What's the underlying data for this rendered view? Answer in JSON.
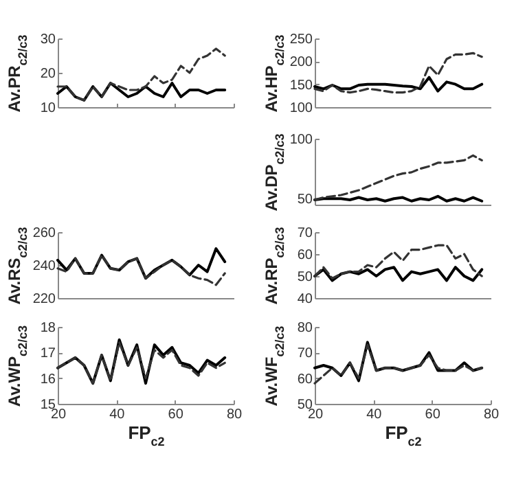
{
  "chart_data": [
    {
      "type": "line",
      "ylabel": "Av.PR$_{c2/c3}$",
      "x": [
        20,
        23,
        26,
        29,
        32,
        35,
        38,
        41,
        44,
        47,
        50,
        53,
        56,
        59,
        62,
        65,
        68,
        71,
        74,
        77
      ],
      "xlim": [
        20,
        80
      ],
      "xticks": [
        {
          "value": 20,
          "label": null
        },
        {
          "value": 40,
          "label": null
        },
        {
          "value": 60,
          "label": null
        },
        {
          "value": 80,
          "label": null
        }
      ],
      "ylim": [
        10,
        30
      ],
      "yticks": [
        10,
        20,
        30
      ],
      "tick_labels": "y",
      "grid": false,
      "series": [
        {
          "color": "#000000",
          "line_style": "solid",
          "values": [
            14,
            16,
            13,
            12,
            16,
            13,
            17,
            15,
            13,
            14,
            16,
            14,
            13,
            17,
            13,
            15,
            15,
            14,
            15,
            15
          ]
        },
        {
          "color": "#333333",
          "line_style": "dashed",
          "values": [
            16,
            16,
            13,
            12,
            16,
            13,
            17,
            16,
            15,
            15,
            16,
            19,
            17,
            18,
            22,
            20,
            24,
            25,
            27,
            25
          ]
        }
      ]
    },
    {
      "type": "line",
      "ylabel": "Av.HP$_{c2/c3}$",
      "x": [
        20,
        23,
        26,
        29,
        32,
        35,
        38,
        41,
        44,
        47,
        50,
        53,
        56,
        59,
        62,
        65,
        68,
        71,
        74,
        77
      ],
      "xlim": [
        20,
        80
      ],
      "ylim": [
        100,
        250
      ],
      "yticks": [
        100,
        150,
        200,
        250
      ],
      "tick_labels": "y",
      "grid": false,
      "series": [
        {
          "color": "#000000",
          "line_style": "solid",
          "values": [
            145,
            140,
            148,
            140,
            140,
            148,
            150,
            150,
            150,
            148,
            146,
            145,
            140,
            165,
            135,
            155,
            150,
            140,
            140,
            150
          ]
        },
        {
          "color": "#333333",
          "line_style": "dashed",
          "values": [
            140,
            135,
            148,
            135,
            132,
            135,
            140,
            138,
            135,
            132,
            132,
            135,
            145,
            190,
            170,
            205,
            215,
            215,
            218,
            210
          ]
        }
      ]
    },
    {
      "type": "line",
      "ylabel": "Av.DP$_{c2/c3}$",
      "x": [
        20,
        23,
        26,
        29,
        32,
        35,
        38,
        41,
        44,
        47,
        50,
        53,
        56,
        59,
        62,
        65,
        68,
        71,
        74,
        77
      ],
      "xlim": [
        20,
        80
      ],
      "ylim": [
        45,
        100
      ],
      "yticks": [
        50,
        100
      ],
      "tick_labels": "y",
      "grid": false,
      "series": [
        {
          "color": "#000000",
          "line_style": "solid",
          "values": [
            49,
            50,
            50,
            50,
            49,
            51,
            49,
            50,
            48,
            50,
            51,
            48,
            50,
            49,
            52,
            48,
            50,
            48,
            51,
            48
          ]
        },
        {
          "color": "#333333",
          "line_style": "dashed",
          "values": [
            49,
            51,
            52,
            53,
            55,
            57,
            60,
            63,
            66,
            69,
            71,
            72,
            75,
            77,
            80,
            80,
            81,
            82,
            86,
            82
          ]
        }
      ]
    },
    {
      "type": "line",
      "ylabel": "Av.RS$_{c2/c3}$",
      "x": [
        20,
        23,
        26,
        29,
        32,
        35,
        38,
        41,
        44,
        47,
        50,
        53,
        56,
        59,
        62,
        65,
        68,
        71,
        74,
        77
      ],
      "xlim": [
        20,
        80
      ],
      "ylim": [
        220,
        260
      ],
      "yticks": [
        220,
        240,
        260
      ],
      "tick_labels": "y",
      "grid": false,
      "series": [
        {
          "color": "#000000",
          "line_style": "solid",
          "values": [
            243,
            237,
            244,
            235,
            235,
            246,
            238,
            237,
            242,
            244,
            232,
            237,
            240,
            243,
            239,
            234,
            240,
            236,
            250,
            242
          ]
        },
        {
          "color": "#333333",
          "line_style": "dashed",
          "values": [
            238,
            236,
            244,
            235,
            235,
            246,
            238,
            237,
            242,
            244,
            232,
            236,
            240,
            243,
            239,
            234,
            232,
            231,
            228,
            235
          ]
        }
      ]
    },
    {
      "type": "line",
      "ylabel": "Av.RP$_{c2/c3}$",
      "x": [
        20,
        23,
        26,
        29,
        32,
        35,
        38,
        41,
        44,
        47,
        50,
        53,
        56,
        59,
        62,
        65,
        68,
        71,
        74,
        77
      ],
      "xlim": [
        20,
        80
      ],
      "ylim": [
        40,
        70
      ],
      "yticks": [
        40,
        50,
        60,
        70
      ],
      "tick_labels": "y",
      "grid": false,
      "series": [
        {
          "color": "#000000",
          "line_style": "solid",
          "values": [
            50,
            53,
            48,
            51,
            52,
            51,
            53,
            50,
            53,
            54,
            48,
            52,
            51,
            52,
            53,
            48,
            54,
            50,
            48,
            53
          ]
        },
        {
          "color": "#333333",
          "line_style": "dashed",
          "values": [
            50,
            54,
            49,
            51,
            52,
            52,
            55,
            54,
            58,
            61,
            57,
            62,
            62,
            63,
            64,
            64,
            58,
            60,
            53,
            50
          ]
        }
      ]
    },
    {
      "type": "line",
      "xlabel": "FP$_{c2}$",
      "ylabel": "Av.WP$_{c2/c3}$",
      "x": [
        20,
        23,
        26,
        29,
        32,
        35,
        38,
        41,
        44,
        47,
        50,
        53,
        56,
        59,
        62,
        65,
        68,
        71,
        74,
        77
      ],
      "xlim": [
        20,
        80
      ],
      "xticks": [
        20,
        40,
        60,
        80
      ],
      "ylim": [
        15,
        18
      ],
      "yticks": [
        15,
        16,
        17,
        18
      ],
      "grid": false,
      "series": [
        {
          "color": "#000000",
          "line_style": "solid",
          "values": [
            16.4,
            16.6,
            16.8,
            16.5,
            15.8,
            16.9,
            15.9,
            17.5,
            16.5,
            17.3,
            15.8,
            17.3,
            16.9,
            17.2,
            16.6,
            16.5,
            16.2,
            16.7,
            16.5,
            16.8
          ]
        },
        {
          "color": "#333333",
          "line_style": "dashed",
          "values": [
            16.4,
            16.6,
            16.8,
            16.5,
            15.8,
            16.9,
            15.9,
            17.4,
            16.5,
            17.2,
            16.0,
            17.1,
            16.8,
            17.1,
            16.5,
            16.4,
            16.1,
            16.6,
            16.4,
            16.6
          ]
        }
      ]
    },
    {
      "type": "line",
      "xlabel": "FP$_{c2}$",
      "ylabel": "Av.WF$_{c2/c3}$",
      "x": [
        20,
        23,
        26,
        29,
        32,
        35,
        38,
        41,
        44,
        47,
        50,
        53,
        56,
        59,
        62,
        65,
        68,
        71,
        74,
        77
      ],
      "xlim": [
        20,
        80
      ],
      "xticks": [
        20,
        40,
        60,
        80
      ],
      "ylim": [
        50,
        80
      ],
      "yticks": [
        50,
        60,
        70,
        80
      ],
      "grid": false,
      "series": [
        {
          "color": "#000000",
          "line_style": "solid",
          "values": [
            64,
            65,
            64,
            61,
            66,
            59,
            74,
            63,
            64,
            64,
            63,
            64,
            65,
            70,
            63,
            63,
            63,
            66,
            63,
            64
          ]
        },
        {
          "color": "#333333",
          "line_style": "dashed",
          "values": [
            58,
            61,
            64,
            61,
            66,
            60,
            73,
            63,
            64,
            64,
            63,
            64,
            65,
            69,
            64,
            63,
            63,
            65,
            63,
            64
          ]
        }
      ]
    }
  ]
}
